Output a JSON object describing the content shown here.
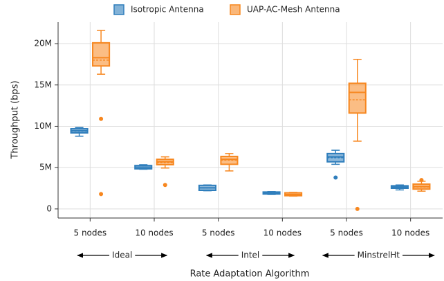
{
  "chart_data": {
    "type": "box",
    "ylabel": "Throughput (bps)",
    "xlabel": "Rate Adaptation Algorithm",
    "categories": [
      "5 nodes",
      "10 nodes",
      "5 nodes",
      "10 nodes",
      "5 nodes",
      "10 nodes"
    ],
    "groups": [
      "Ideal",
      "Intel",
      "MinstrelHt"
    ],
    "ylim": [
      -1100000,
      22600000
    ],
    "yticks": [
      0,
      {
        "value": 5000000,
        "label": "5M"
      },
      {
        "value": 10000000,
        "label": "10M"
      },
      {
        "value": 15000000,
        "label": "15M"
      },
      {
        "value": 20000000,
        "label": "20M"
      }
    ],
    "grid": true,
    "legend": "top",
    "series": [
      {
        "name": "Isotropic Antenna",
        "color": "#2f7ebc",
        "boxes": [
          {
            "min": 8800000,
            "q1": 9200000,
            "median": 9450000,
            "mean": 9400000,
            "q3": 9700000,
            "max": 9850000,
            "outliers": []
          },
          {
            "min": 4800000,
            "q1": 4850000,
            "median": 5050000,
            "mean": 5050000,
            "q3": 5250000,
            "max": 5350000,
            "outliers": []
          },
          {
            "min": 2200000,
            "q1": 2250000,
            "median": 2550000,
            "mean": 2550000,
            "q3": 2850000,
            "max": 2900000,
            "outliers": []
          },
          {
            "min": 1750000,
            "q1": 1800000,
            "median": 1900000,
            "mean": 1900000,
            "q3": 2050000,
            "max": 2100000,
            "outliers": []
          },
          {
            "min": 5400000,
            "q1": 5700000,
            "median": 6300000,
            "mean": 6200000,
            "q3": 6700000,
            "max": 7100000,
            "outliers": [
              3800000
            ]
          },
          {
            "min": 2300000,
            "q1": 2500000,
            "median": 2650000,
            "mean": 2650000,
            "q3": 2800000,
            "max": 2900000,
            "outliers": []
          }
        ]
      },
      {
        "name": "UAP-AC-Mesh Antenna",
        "color": "#f7871f",
        "boxes": [
          {
            "min": 16300000,
            "q1": 17300000,
            "median": 18300000,
            "mean": 18000000,
            "q3": 20100000,
            "max": 21600000,
            "outliers": [
              10900000,
              1800000
            ]
          },
          {
            "min": 4950000,
            "q1": 5350000,
            "median": 5700000,
            "mean": 5600000,
            "q3": 6000000,
            "max": 6300000,
            "outliers": [
              2900000
            ]
          },
          {
            "min": 4600000,
            "q1": 5400000,
            "median": 6000000,
            "mean": 5900000,
            "q3": 6350000,
            "max": 6700000,
            "outliers": []
          },
          {
            "min": 1550000,
            "q1": 1600000,
            "median": 1750000,
            "mean": 1750000,
            "q3": 1950000,
            "max": 2000000,
            "outliers": []
          },
          {
            "min": 8200000,
            "q1": 11600000,
            "median": 14100000,
            "mean": 13200000,
            "q3": 15200000,
            "max": 18100000,
            "outliers": [
              0
            ]
          },
          {
            "min": 2150000,
            "q1": 2400000,
            "median": 2700000,
            "mean": 2650000,
            "q3": 3000000,
            "max": 3350000,
            "outliers": [
              3500000
            ]
          }
        ]
      }
    ]
  }
}
